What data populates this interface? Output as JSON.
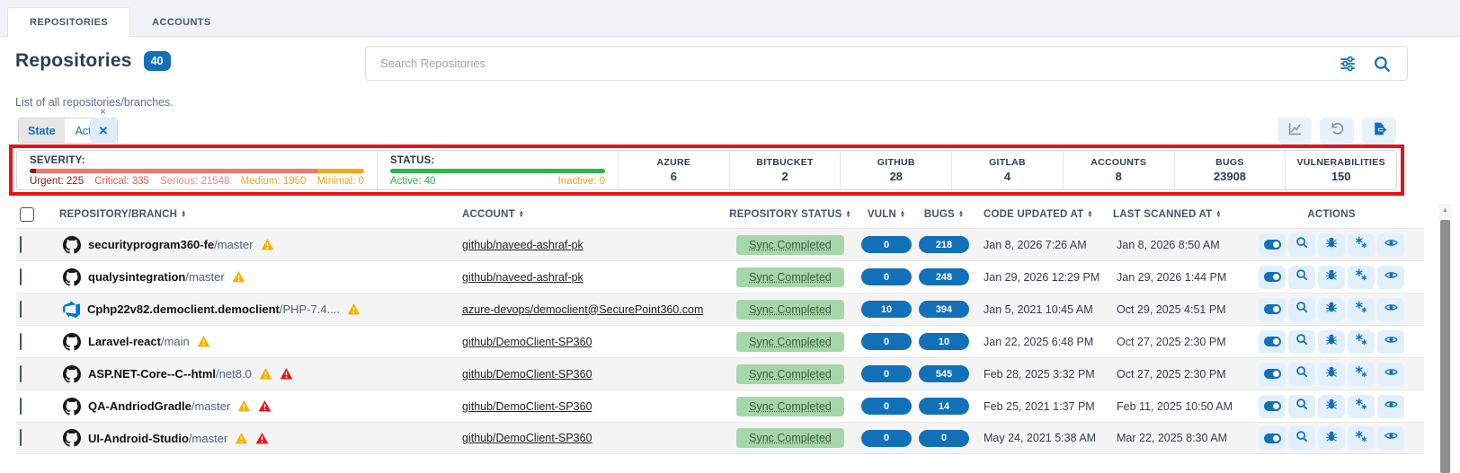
{
  "tabs": [
    {
      "label": "REPOSITORIES",
      "active": true
    },
    {
      "label": "ACCOUNTS",
      "active": false
    }
  ],
  "header": {
    "title": "Repositories",
    "count": "40",
    "subtitle": "List of all repositories/branches."
  },
  "search": {
    "placeholder": "Search Repositories"
  },
  "filter_chip": {
    "key": "State",
    "value": "Active",
    "close": "×",
    "clear": "✕"
  },
  "toolbar": {
    "icons": [
      "line-chart-icon",
      "reset-icon",
      "export-icon"
    ]
  },
  "summary": {
    "severity": {
      "label": "SEVERITY:",
      "items": [
        {
          "label": "Urgent: 225",
          "color": "#8b1a10"
        },
        {
          "label": "Critical: 335",
          "color": "#e8594a"
        },
        {
          "label": "Serious: 21548",
          "color": "#f2847c"
        },
        {
          "label": "Medium: 1950",
          "color": "#f6a41f"
        },
        {
          "label": "Minimal: 0",
          "color": "#f6a41f"
        }
      ],
      "bar": [
        {
          "color": "#8b1a10",
          "pct": 2
        },
        {
          "color": "#f3766b",
          "pct": 84
        },
        {
          "color": "#f7a81b",
          "pct": 14
        }
      ]
    },
    "status": {
      "label": "STATUS:",
      "bar_color": "#2eb34f",
      "active": {
        "label": "Active: 40",
        "color": "#2eb34f"
      },
      "inactive": {
        "label": "Inactive: 0",
        "color": "#f6a41f"
      }
    },
    "counters": [
      {
        "label": "AZURE",
        "value": "6"
      },
      {
        "label": "BITBUCKET",
        "value": "2"
      },
      {
        "label": "GITHUB",
        "value": "28"
      },
      {
        "label": "GITLAB",
        "value": "4"
      },
      {
        "label": "ACCOUNTS",
        "value": "8"
      },
      {
        "label": "BUGS",
        "value": "23908"
      },
      {
        "label": "VULNERABILITIES",
        "value": "150"
      }
    ]
  },
  "table": {
    "headers": [
      "REPOSITORY/BRANCH",
      "ACCOUNT",
      "REPOSITORY STATUS",
      "VULN",
      "BUGS",
      "CODE UPDATED AT",
      "LAST SCANNED AT",
      "ACTIONS"
    ],
    "actions": [
      "toggle-icon",
      "search-icon",
      "bug-icon",
      "scan-icon",
      "eye-icon"
    ],
    "rows": [
      {
        "provider": "github",
        "repo": "securityprogram360-fe",
        "branch": "/master",
        "warnings": [
          "yellow"
        ],
        "account": "github/naveed-ashraf-pk",
        "status": "Sync Completed",
        "vuln": "0",
        "bugs": "218",
        "code_updated_at": "Jan 8, 2026 7:26 AM",
        "last_scanned_at": "Jan 8, 2026 8:50 AM"
      },
      {
        "provider": "github",
        "repo": "qualysintegration",
        "branch": "/master",
        "warnings": [
          "yellow"
        ],
        "account": "github/naveed-ashraf-pk",
        "status": "Sync Completed",
        "vuln": "0",
        "bugs": "248",
        "code_updated_at": "Jan 29, 2026 12:29 PM",
        "last_scanned_at": "Jan 29, 2026 1:44 PM"
      },
      {
        "provider": "azure-devops",
        "repo": "Cphp22v82.democlient.democlient",
        "branch": "/PHP-7.4....",
        "warnings": [
          "yellow"
        ],
        "account": "azure-devops/democlient@SecurePoint360.com",
        "status": "Sync Completed",
        "vuln": "10",
        "bugs": "394",
        "code_updated_at": "Jan 5, 2021 10:45 AM",
        "last_scanned_at": "Oct 29, 2025 4:51 PM"
      },
      {
        "provider": "github",
        "repo": "Laravel-react",
        "branch": "/main",
        "warnings": [
          "yellow"
        ],
        "account": "github/DemoClient-SP360",
        "status": "Sync Completed",
        "vuln": "0",
        "bugs": "10",
        "code_updated_at": "Jan 22, 2025 6:48 PM",
        "last_scanned_at": "Oct 27, 2025 2:30 PM"
      },
      {
        "provider": "github",
        "repo": "ASP.NET-Core--C--html",
        "branch": "/net8.0",
        "warnings": [
          "yellow",
          "red"
        ],
        "account": "github/DemoClient-SP360",
        "status": "Sync Completed",
        "vuln": "0",
        "bugs": "545",
        "code_updated_at": "Feb 28, 2025 3:32 PM",
        "last_scanned_at": "Oct 27, 2025 2:30 PM"
      },
      {
        "provider": "github",
        "repo": "QA-AndriodGradle",
        "branch": "/master",
        "warnings": [
          "yellow",
          "red"
        ],
        "account": "github/DemoClient-SP360",
        "status": "Sync Completed",
        "vuln": "0",
        "bugs": "14",
        "code_updated_at": "Feb 25, 2021 1:37 PM",
        "last_scanned_at": "Feb 11, 2025 10:50 AM"
      },
      {
        "provider": "github",
        "repo": "UI-Android-Studio",
        "branch": "/master",
        "warnings": [
          "yellow",
          "red"
        ],
        "account": "github/DemoClient-SP360",
        "status": "Sync Completed",
        "vuln": "0",
        "bugs": "0",
        "code_updated_at": "May 24, 2021 5:38 AM",
        "last_scanned_at": "Mar 22, 2025 8:30 AM"
      }
    ]
  },
  "colors": {
    "primary": "#1170b8",
    "annotation_box": "#ea1218",
    "warning_yellow": "#f6b100",
    "warning_red": "#e8131d",
    "sync_badge_bg": "#a6d7aa",
    "status_green": "#2eb34f"
  }
}
